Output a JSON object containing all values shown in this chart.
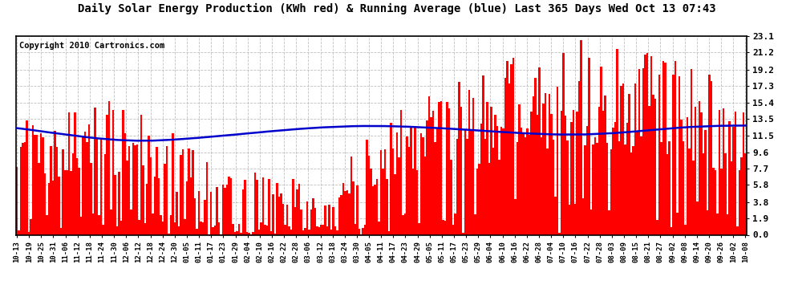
{
  "title": "Daily Solar Energy Production (KWh red) & Running Average (blue) Last 365 Days Wed Oct 13 07:43",
  "copyright_text": "Copyright 2010 Cartronics.com",
  "yticks": [
    0.0,
    1.9,
    3.8,
    5.8,
    7.7,
    9.6,
    11.5,
    13.5,
    15.4,
    17.3,
    19.2,
    21.2,
    23.1
  ],
  "ymax": 23.1,
  "ymin": 0.0,
  "bar_color": "#ff0000",
  "avg_color": "#0000cc",
  "bg_color": "#ffffff",
  "grid_color": "#b0b0b0",
  "title_fontsize": 10,
  "copyright_fontsize": 7.5,
  "x_labels": [
    "10-13",
    "10-19",
    "10-25",
    "10-31",
    "11-06",
    "11-12",
    "11-18",
    "11-24",
    "11-30",
    "12-06",
    "12-12",
    "12-18",
    "12-24",
    "12-30",
    "01-05",
    "01-11",
    "01-17",
    "01-23",
    "01-29",
    "02-04",
    "02-10",
    "02-16",
    "02-22",
    "02-28",
    "03-06",
    "03-12",
    "03-18",
    "03-24",
    "03-30",
    "04-05",
    "04-11",
    "04-17",
    "04-23",
    "04-29",
    "05-05",
    "05-11",
    "05-17",
    "05-23",
    "05-29",
    "06-04",
    "06-10",
    "06-16",
    "06-22",
    "06-28",
    "07-04",
    "07-10",
    "07-16",
    "07-22",
    "07-28",
    "08-03",
    "08-09",
    "08-15",
    "08-21",
    "08-27",
    "09-02",
    "09-08",
    "09-14",
    "09-20",
    "09-26",
    "10-02",
    "10-08"
  ],
  "num_bars": 365,
  "avg_values": [
    12.4,
    12.38,
    12.35,
    12.32,
    12.29,
    12.26,
    12.23,
    12.2,
    12.17,
    12.14,
    12.1,
    12.07,
    12.04,
    12.01,
    11.97,
    11.94,
    11.91,
    11.88,
    11.85,
    11.82,
    11.78,
    11.75,
    11.72,
    11.69,
    11.66,
    11.63,
    11.6,
    11.57,
    11.54,
    11.51,
    11.48,
    11.45,
    11.43,
    11.4,
    11.37,
    11.35,
    11.32,
    11.3,
    11.27,
    11.25,
    11.22,
    11.2,
    11.18,
    11.16,
    11.14,
    11.12,
    11.1,
    11.08,
    11.06,
    11.05,
    11.03,
    11.02,
    11.0,
    10.99,
    10.98,
    10.97,
    10.96,
    10.95,
    10.95,
    10.94,
    10.94,
    10.94,
    10.93,
    10.93,
    10.94,
    10.94,
    10.94,
    10.95,
    10.95,
    10.96,
    10.97,
    10.98,
    10.99,
    11.0,
    11.01,
    11.02,
    11.04,
    11.05,
    11.06,
    11.08,
    11.09,
    11.11,
    11.12,
    11.14,
    11.16,
    11.17,
    11.19,
    11.21,
    11.23,
    11.24,
    11.26,
    11.28,
    11.3,
    11.32,
    11.34,
    11.36,
    11.38,
    11.4,
    11.42,
    11.44,
    11.46,
    11.48,
    11.5,
    11.52,
    11.54,
    11.57,
    11.59,
    11.61,
    11.63,
    11.65,
    11.67,
    11.69,
    11.72,
    11.74,
    11.76,
    11.78,
    11.8,
    11.82,
    11.85,
    11.87,
    11.89,
    11.91,
    11.93,
    11.95,
    11.98,
    12.0,
    12.02,
    12.04,
    12.06,
    12.08,
    12.1,
    12.12,
    12.14,
    12.16,
    12.18,
    12.2,
    12.22,
    12.24,
    12.25,
    12.27,
    12.29,
    12.31,
    12.32,
    12.34,
    12.36,
    12.37,
    12.39,
    12.4,
    12.42,
    12.43,
    12.45,
    12.46,
    12.48,
    12.49,
    12.5,
    12.51,
    12.52,
    12.54,
    12.55,
    12.56,
    12.57,
    12.58,
    12.59,
    12.6,
    12.6,
    12.61,
    12.62,
    12.62,
    12.63,
    12.63,
    12.64,
    12.64,
    12.65,
    12.65,
    12.65,
    12.65,
    12.65,
    12.65,
    12.65,
    12.65,
    12.65,
    12.65,
    12.64,
    12.64,
    12.64,
    12.63,
    12.63,
    12.62,
    12.62,
    12.61,
    12.6,
    12.6,
    12.59,
    12.58,
    12.58,
    12.57,
    12.56,
    12.55,
    12.54,
    12.53,
    12.52,
    12.51,
    12.5,
    12.49,
    12.48,
    12.47,
    12.46,
    12.45,
    12.44,
    12.43,
    12.41,
    12.4,
    12.39,
    12.38,
    12.36,
    12.35,
    12.34,
    12.32,
    12.31,
    12.3,
    12.28,
    12.27,
    12.25,
    12.24,
    12.22,
    12.21,
    12.2,
    12.18,
    12.17,
    12.15,
    12.14,
    12.12,
    12.11,
    12.09,
    12.08,
    12.06,
    12.05,
    12.03,
    12.02,
    12.0,
    11.99,
    11.97,
    11.96,
    11.95,
    11.93,
    11.92,
    11.9,
    11.89,
    11.88,
    11.86,
    11.85,
    11.84,
    11.82,
    11.81,
    11.8,
    11.79,
    11.78,
    11.77,
    11.76,
    11.75,
    11.74,
    11.73,
    11.72,
    11.71,
    11.7,
    11.7,
    11.69,
    11.68,
    11.68,
    11.67,
    11.67,
    11.66,
    11.66,
    11.66,
    11.66,
    11.65,
    11.65,
    11.65,
    11.65,
    11.65,
    11.66,
    11.66,
    11.66,
    11.67,
    11.67,
    11.68,
    11.69,
    11.7,
    11.7,
    11.71,
    11.72,
    11.73,
    11.74,
    11.76,
    11.77,
    11.78,
    11.79,
    11.81,
    11.82,
    11.84,
    11.85,
    11.87,
    11.88,
    11.9,
    11.92,
    11.94,
    11.96,
    11.98,
    12.0,
    12.02,
    12.04,
    12.06,
    12.08,
    12.1,
    12.12,
    12.14,
    12.16,
    12.18,
    12.2,
    12.22,
    12.24,
    12.26,
    12.28,
    12.3,
    12.32,
    12.34,
    12.36,
    12.38,
    12.4,
    12.42,
    12.43,
    12.45,
    12.47,
    12.48,
    12.5,
    12.51,
    12.53,
    12.54,
    12.55,
    12.57,
    12.58,
    12.59,
    12.6,
    12.61,
    12.62,
    12.63,
    12.64,
    12.65,
    12.65,
    12.66,
    12.66,
    12.67,
    12.67,
    12.68,
    12.68,
    12.68,
    12.69,
    12.69,
    12.69,
    12.69,
    12.69,
    12.7,
    12.7,
    12.7,
    12.7
  ]
}
